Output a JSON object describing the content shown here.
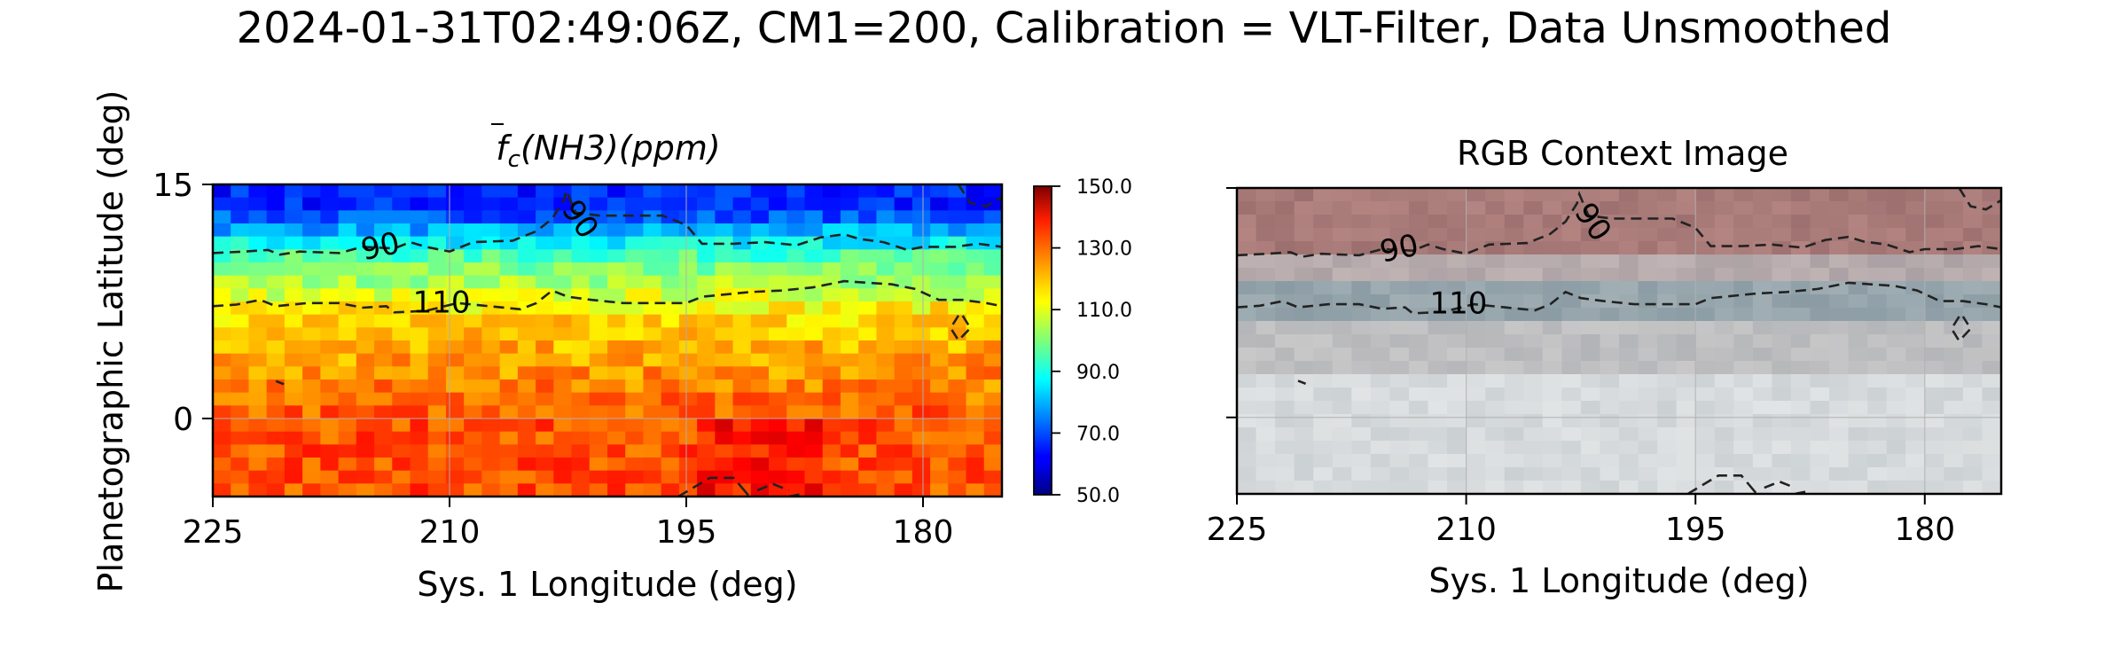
{
  "figure": {
    "title": "2024-01-31T02:49:06Z, CM1=200, Calibration = VLT-Filter, Data Unsmoothed"
  },
  "chart_data": [
    {
      "type": "heatmap",
      "title": "f̄c(NH3)(ppm)",
      "title_parts": {
        "f": "f",
        "sub": "c",
        "rest": "(NH3)(ppm)"
      },
      "xlabel": "Sys. 1 Longitude (deg)",
      "ylabel": "Planetographic Latitude (deg)",
      "xlim": [
        225,
        175
      ],
      "ylim": [
        -5,
        15
      ],
      "xticks": [
        "225",
        "210",
        "195",
        "180"
      ],
      "yticks": [
        "15",
        "0"
      ],
      "grid": true,
      "colormap": "jet",
      "colorbar": {
        "range": [
          50,
          150
        ],
        "ticks": [
          "150.0",
          "130.0",
          "110.0",
          "90.0",
          "70.0",
          "50.0"
        ]
      },
      "contours": [
        {
          "level": "90",
          "label": "90"
        },
        {
          "level": "110",
          "label": "110"
        }
      ]
    },
    {
      "type": "image",
      "title": "RGB Context Image",
      "xlabel": "Sys. 1 Longitude (deg)",
      "xlim": [
        225,
        175
      ],
      "ylim": [
        -5,
        15
      ],
      "xticks": [
        "225",
        "210",
        "195",
        "180"
      ],
      "grid": true,
      "contours": [
        {
          "level": "90",
          "label": "90"
        },
        {
          "level": "110",
          "label": "110"
        }
      ]
    }
  ]
}
